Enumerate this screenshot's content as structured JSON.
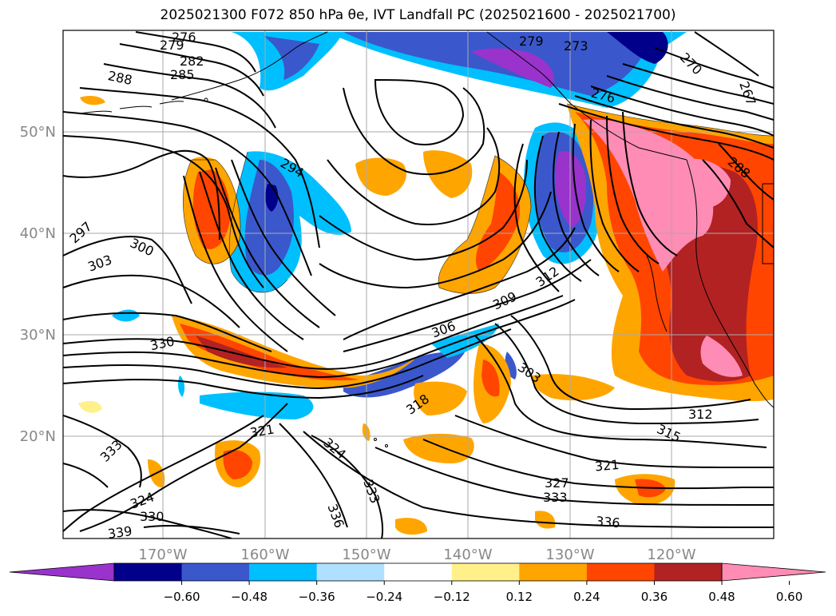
{
  "title": "2025021300 F072 850 hPa θe, IVT Landfall PC (2025021600 - 2025021700)",
  "lat_labels": [
    "50°N",
    "40°N",
    "30°N",
    "20°N"
  ],
  "lon_labels": [
    "170°W",
    "160°W",
    "150°W",
    "140°W",
    "130°W",
    "120°W"
  ],
  "colorbar": {
    "colors": [
      "#9933cc",
      "#00008b",
      "#3a58cc",
      "#00bfff",
      "#b0e0ff",
      "#ffffff",
      "#fff08a",
      "#ffa500",
      "#ff4500",
      "#b22222",
      "#ff8cb4"
    ],
    "ticks": [
      "−0.60",
      "−0.48",
      "−0.36",
      "−0.24",
      "−0.12",
      "0.12",
      "0.24",
      "0.36",
      "0.48",
      "0.60"
    ]
  },
  "contour_labels": [
    "276",
    "279",
    "282",
    "285",
    "288",
    "294",
    "297",
    "300",
    "303",
    "330",
    "333",
    "324",
    "330",
    "339",
    "321",
    "324",
    "333",
    "336",
    "318",
    "306",
    "309",
    "312",
    "303",
    "312",
    "315",
    "321",
    "327",
    "333",
    "336",
    "267",
    "270",
    "273",
    "276",
    "279",
    "288"
  ]
}
